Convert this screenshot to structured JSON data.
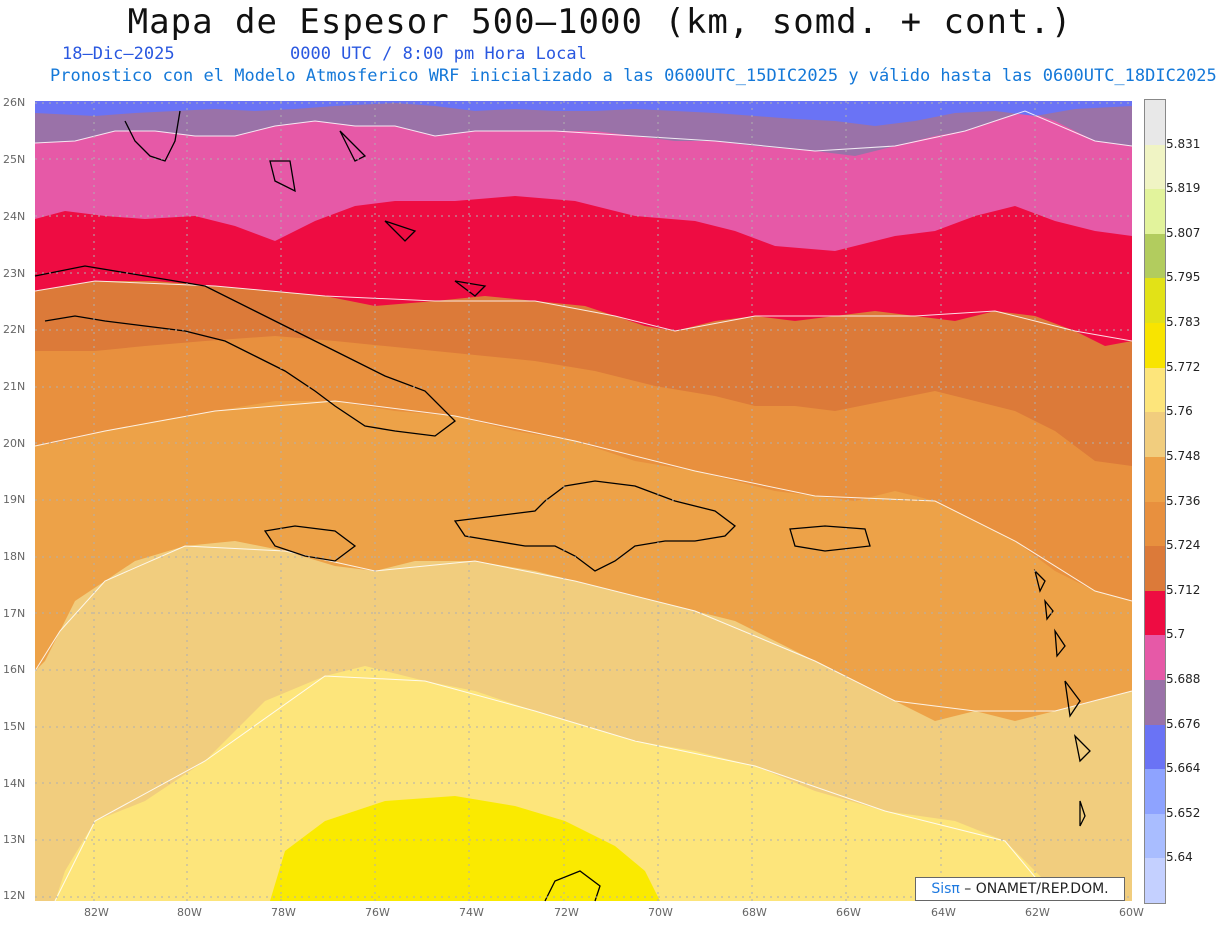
{
  "header": {
    "title": "Mapa de Espesor 500–1000 (km, somd. + cont.)",
    "date": "18–Dic–2025",
    "time": "0000 UTC / 8:00 pm Hora Local",
    "forecast_note": "Pronostico con el Modelo Atmosferico WRF inicializado a las 0600UTC_15DIC2025 y válido hasta las  0600UTC_18DIC2025"
  },
  "map": {
    "lat_labels": [
      "26N",
      "25N",
      "24N",
      "23N",
      "22N",
      "21N",
      "20N",
      "19N",
      "18N",
      "17N",
      "16N",
      "15N",
      "14N",
      "13N",
      "12N"
    ],
    "lon_labels": [
      "82W",
      "80W",
      "78W",
      "76W",
      "74W",
      "72W",
      "70W",
      "68W",
      "66W",
      "64W",
      "62W",
      "60W"
    ],
    "bands_colors": [
      "#6a73f5",
      "#9a72a8",
      "#e659a7",
      "#ee0c42",
      "#dc7a39",
      "#e8903e",
      "#eda248",
      "#f1cd7e",
      "#fde57b",
      "#faea00"
    ]
  },
  "legend": {
    "labels": [
      "5.831",
      "5.819",
      "5.807",
      "5.795",
      "5.783",
      "5.772",
      "5.76",
      "5.748",
      "5.736",
      "5.724",
      "5.712",
      "5.7",
      "5.688",
      "5.676",
      "5.664",
      "5.652",
      "5.64"
    ],
    "colors": [
      "#e8e8e8",
      "#f0f4c4",
      "#e2f39c",
      "#b2cc5e",
      "#e2e217",
      "#f8e400",
      "#fde57b",
      "#f1cd7e",
      "#eda248",
      "#e8903e",
      "#dc7a39",
      "#ee0c42",
      "#e659a7",
      "#9a72a8",
      "#6a73f5",
      "#8ea3ff",
      "#a9bdff",
      "#c4d0ff"
    ]
  },
  "credit": {
    "brand": "Sisπ",
    "text": " – ONAMET/REP.DOM."
  }
}
